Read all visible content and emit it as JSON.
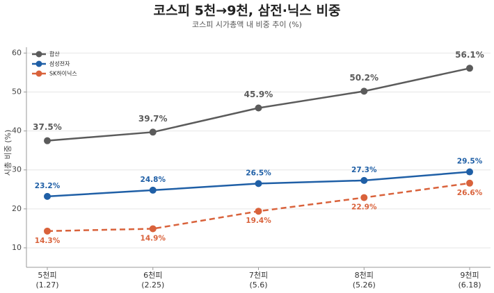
{
  "chart_data": {
    "type": "line",
    "title": "코스피 5천→9천, 삼전·닉스 비중",
    "subtitle": "코스피 시가총액 내 비중 추이 (%)",
    "y_label": "시총 비중 (%)",
    "categories": [
      "5천피\n(1.27)",
      "6천피\n(2.25)",
      "7천피\n(5.6)",
      "8천피\n(5.26)",
      "9천피\n(6.18)"
    ],
    "series": [
      {
        "name": "합산",
        "color": "#5b5b5b",
        "dashed": false,
        "label_pos": "above",
        "values": [
          37.5,
          39.7,
          45.9,
          50.2,
          56.1
        ],
        "value_labels": [
          "37.5%",
          "39.7%",
          "45.9%",
          "50.2%",
          "56.1%"
        ]
      },
      {
        "name": "삼성전자",
        "color": "#1f5fa6",
        "dashed": false,
        "label_pos": "above",
        "values": [
          23.2,
          24.8,
          26.5,
          27.3,
          29.5
        ],
        "value_labels": [
          "23.2%",
          "24.8%",
          "26.5%",
          "27.3%",
          "29.5%"
        ]
      },
      {
        "name": "SK하이닉스",
        "color": "#d9623b",
        "dashed": true,
        "label_pos": "below",
        "values": [
          14.3,
          14.9,
          19.4,
          22.9,
          26.6
        ],
        "value_labels": [
          "14.3%",
          "14.9%",
          "19.4%",
          "22.9%",
          "26.6%"
        ]
      }
    ],
    "ylim": [
      5,
      61.5
    ],
    "yticks": [
      10,
      20,
      30,
      40,
      50,
      60
    ],
    "grid": true,
    "legend": "upper-left"
  }
}
